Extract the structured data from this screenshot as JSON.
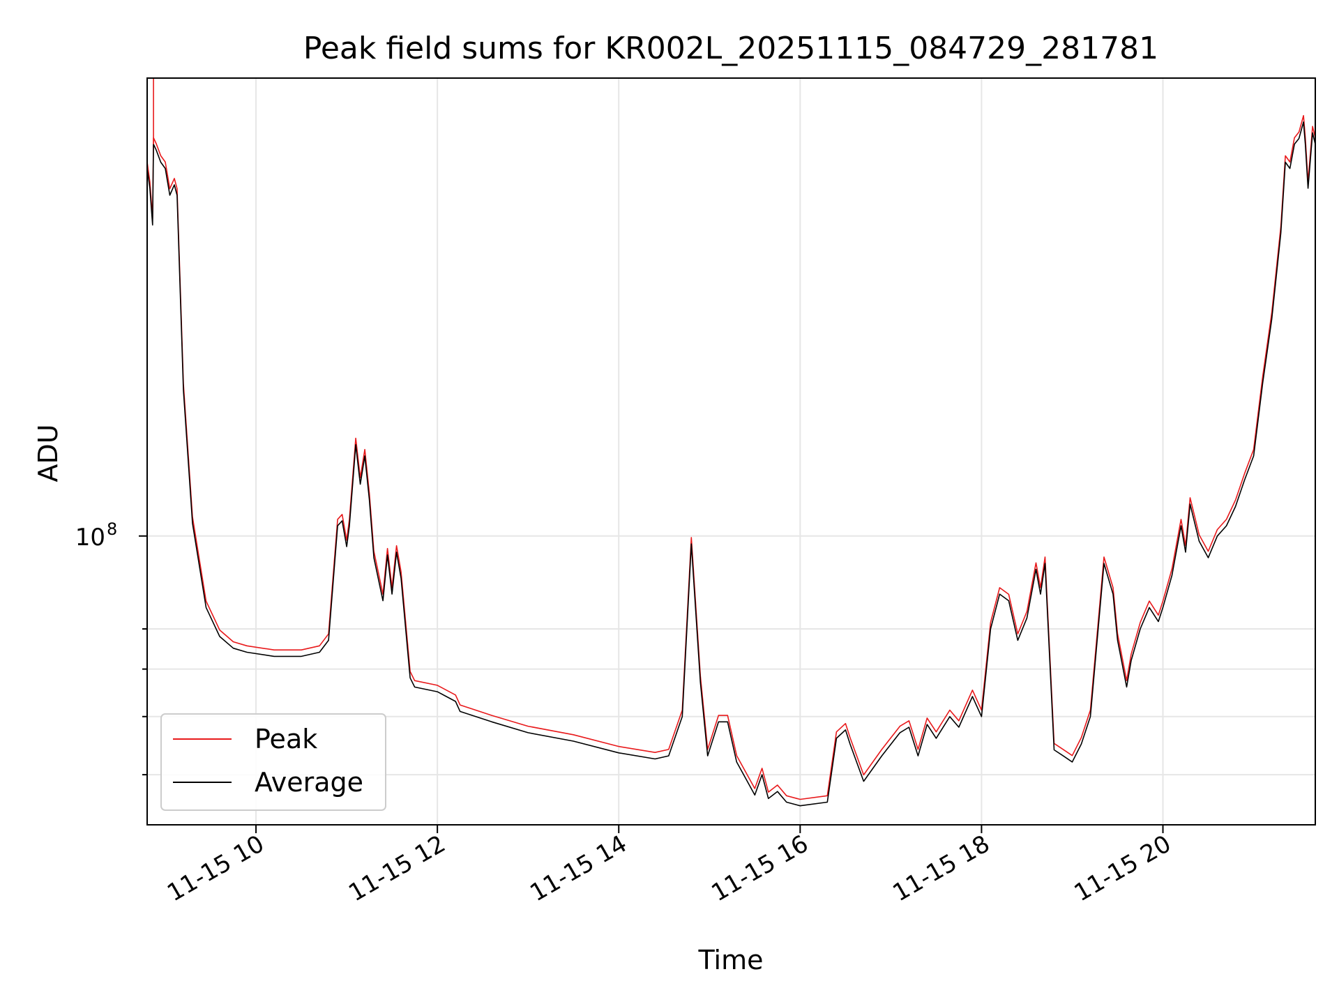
{
  "chart_data": {
    "type": "line",
    "title": "Peak field sums for KR002L_20251115_084729_281781",
    "xlabel": "Time",
    "ylabel": "ADU",
    "yscale": "log",
    "xlim_hours": [
      8.8,
      21.68
    ],
    "ylim": [
      33000000,
      580000000
    ],
    "x_ticks": [
      {
        "label": "11-15 10",
        "value": 10
      },
      {
        "label": "11-15 12",
        "value": 12
      },
      {
        "label": "11-15 14",
        "value": 14
      },
      {
        "label": "11-15 16",
        "value": 16
      },
      {
        "label": "11-15 18",
        "value": 18
      },
      {
        "label": "11-15 20",
        "value": 20
      }
    ],
    "y_ticks_major": [
      {
        "base": "10",
        "exp": "8",
        "value": 100000000
      }
    ],
    "y_ticks_minor": [
      40000000,
      50000000,
      60000000,
      70000000
    ],
    "grid": true,
    "legend_position": "lower-left",
    "series": [
      {
        "name": "Peak",
        "color": "#e8191b",
        "offset_pct": 2.5
      },
      {
        "name": "Average",
        "color": "#000000",
        "offset_pct": 0
      }
    ],
    "x_hours": [
      8.8,
      8.83,
      8.86,
      8.87,
      8.9,
      8.95,
      9.0,
      9.05,
      9.1,
      9.13,
      9.2,
      9.3,
      9.45,
      9.6,
      9.75,
      9.9,
      10.2,
      10.5,
      10.7,
      10.8,
      10.9,
      10.95,
      11.0,
      11.03,
      11.1,
      11.15,
      11.2,
      11.25,
      11.3,
      11.4,
      11.45,
      11.5,
      11.55,
      11.6,
      11.7,
      11.75,
      12.0,
      12.2,
      12.25,
      12.6,
      13.0,
      13.5,
      14.0,
      14.4,
      14.55,
      14.7,
      14.8,
      14.9,
      14.98,
      15.1,
      15.2,
      15.3,
      15.5,
      15.58,
      15.65,
      15.75,
      15.85,
      16.0,
      16.3,
      16.4,
      16.5,
      16.55,
      16.7,
      16.9,
      17.1,
      17.2,
      17.3,
      17.4,
      17.5,
      17.65,
      17.75,
      17.9,
      18.0,
      18.1,
      18.2,
      18.3,
      18.4,
      18.5,
      18.6,
      18.65,
      18.7,
      18.8,
      18.9,
      19.0,
      19.1,
      19.2,
      19.35,
      19.45,
      19.5,
      19.6,
      19.65,
      19.75,
      19.85,
      19.95,
      20.0,
      20.1,
      20.2,
      20.25,
      20.3,
      20.4,
      20.5,
      20.6,
      20.7,
      20.8,
      20.9,
      21.0,
      21.1,
      21.2,
      21.3,
      21.35,
      21.4,
      21.45,
      21.5,
      21.55,
      21.57,
      21.6,
      21.65,
      21.68
    ],
    "y_average": [
      410000000,
      380000000,
      330000000,
      450000000,
      440000000,
      420000000,
      410000000,
      370000000,
      385000000,
      370000000,
      175000000,
      105000000,
      76000000,
      68000000,
      65000000,
      64000000,
      63000000,
      63000000,
      64000000,
      67000000,
      104000000,
      106000000,
      96000000,
      104000000,
      142000000,
      122000000,
      136000000,
      115000000,
      92000000,
      78000000,
      93000000,
      80000000,
      94000000,
      85000000,
      58000000,
      56000000,
      55000000,
      53000000,
      51000000,
      49000000,
      47000000,
      45500000,
      43500000,
      42500000,
      43000000,
      50000000,
      97000000,
      57000000,
      43000000,
      49000000,
      49000000,
      42000000,
      37000000,
      40000000,
      36500000,
      37500000,
      36000000,
      35500000,
      36000000,
      46000000,
      47500000,
      45000000,
      39000000,
      43000000,
      47000000,
      48000000,
      43000000,
      48500000,
      46000000,
      50000000,
      48000000,
      54000000,
      50000000,
      70000000,
      80000000,
      78000000,
      67000000,
      73000000,
      88000000,
      80000000,
      90000000,
      44000000,
      43000000,
      42000000,
      45000000,
      50000000,
      90000000,
      80000000,
      67000000,
      56000000,
      62000000,
      70000000,
      76000000,
      72000000,
      76000000,
      86000000,
      104000000,
      94000000,
      113000000,
      98000000,
      92000000,
      100000000,
      104000000,
      112000000,
      124000000,
      136000000,
      180000000,
      230000000,
      320000000,
      420000000,
      410000000,
      450000000,
      460000000,
      490000000,
      450000000,
      380000000,
      470000000,
      450000000
    ]
  }
}
